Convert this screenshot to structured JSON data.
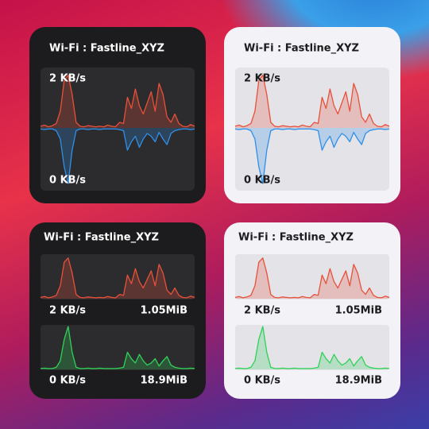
{
  "traffic": {
    "download": [
      3,
      5,
      2,
      4,
      8,
      30,
      85,
      95,
      60,
      10,
      3,
      2,
      4,
      3,
      2,
      3,
      2,
      5,
      3,
      2,
      10,
      8,
      55,
      35,
      70,
      40,
      25,
      45,
      65,
      30,
      80,
      60,
      20,
      10,
      25,
      8,
      3,
      2,
      6,
      3
    ],
    "upload": [
      2,
      3,
      2,
      2,
      5,
      20,
      70,
      100,
      40,
      5,
      2,
      2,
      3,
      2,
      2,
      3,
      2,
      2,
      2,
      2,
      3,
      5,
      40,
      25,
      15,
      35,
      20,
      10,
      15,
      25,
      8,
      20,
      30,
      10,
      5,
      3,
      2,
      2,
      3,
      2
    ]
  },
  "widgets": [
    {
      "title": "Wi-Fi : Fastline_XYZ",
      "theme": "dark",
      "layout": "mirrored",
      "labels": [
        "2 KB/s",
        "0 KB/s"
      ],
      "colors": {
        "download": "#e8503a",
        "upload": "#2f8fe8"
      }
    },
    {
      "title": "Wi-Fi : Fastline_XYZ",
      "theme": "light",
      "layout": "mirrored",
      "labels": [
        "2 KB/s",
        "0 KB/s"
      ],
      "colors": {
        "download": "#e8503a",
        "upload": "#2f8fe8"
      }
    },
    {
      "title": "Wi-Fi : Fastline_XYZ",
      "theme": "dark",
      "layout": "split",
      "labels": [
        "2 KB/s",
        "1.05MiB",
        "0 KB/s",
        "18.9MiB"
      ],
      "colors": {
        "download": "#e8503a",
        "upload": "#30d158"
      }
    },
    {
      "title": "Wi-Fi : Fastline_XYZ",
      "theme": "light",
      "layout": "split",
      "labels": [
        "2 KB/s",
        "1.05MiB",
        "0 KB/s",
        "18.9MiB"
      ],
      "colors": {
        "download": "#e8503a",
        "upload": "#30d158"
      }
    }
  ]
}
